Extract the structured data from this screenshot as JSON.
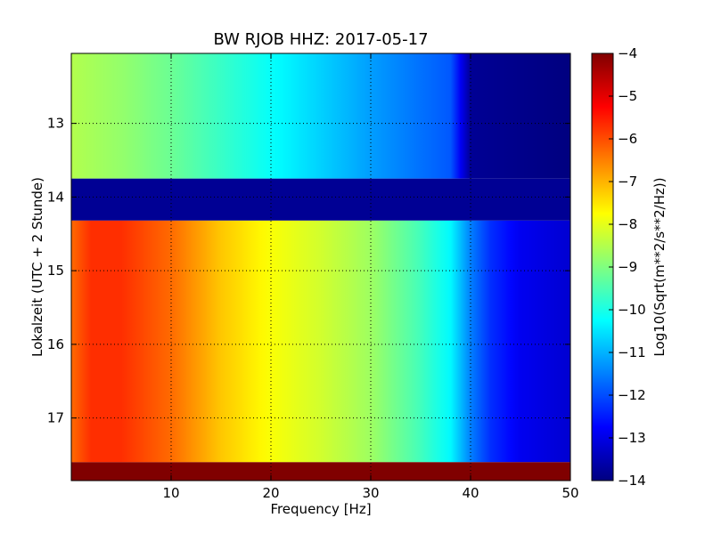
{
  "chart_data": {
    "type": "heatmap",
    "title": "BW RJOB HHZ: 2017-05-17",
    "xlabel": "Frequency [Hz]",
    "ylabel": "Lokalzeit (UTC + 2 Stunde)",
    "xlim": [
      0,
      50
    ],
    "ylim": [
      17.85,
      12.05
    ],
    "xticks": [
      10,
      20,
      30,
      40,
      50
    ],
    "xtick_labels": [
      "10",
      "20",
      "30",
      "40",
      "50"
    ],
    "yticks": [
      13,
      14,
      15,
      16,
      17
    ],
    "ytick_labels": [
      "13",
      "14",
      "15",
      "16",
      "17"
    ],
    "grid": true,
    "colormap": "jet",
    "colorbar": {
      "label": "Log10(Sqrt(m**2/s**2/Hz))",
      "range": [
        -14,
        -4
      ],
      "ticks": [
        -4,
        -5,
        -6,
        -7,
        -8,
        -9,
        -10,
        -11,
        -12,
        -13,
        -14
      ],
      "tick_labels": [
        "−4",
        "−5",
        "−6",
        "−7",
        "−8",
        "−9",
        "−10",
        "−11",
        "−12",
        "−13",
        "−14"
      ]
    },
    "time_blocks": [
      {
        "t_start": 12.05,
        "t_end": 13.75,
        "kind": "quiet",
        "profile_f": [
          0,
          5,
          10,
          20,
          30,
          38,
          40,
          50
        ],
        "profile_v": [
          -8.5,
          -8.8,
          -9.2,
          -10.2,
          -11.2,
          -11.9,
          -13.8,
          -14
        ]
      },
      {
        "t_start": 13.75,
        "t_end": 14.32,
        "kind": "gap",
        "value": -13.8
      },
      {
        "t_start": 14.32,
        "t_end": 17.6,
        "kind": "active",
        "profile_f": [
          0,
          2,
          5,
          10,
          15,
          20,
          25,
          30,
          35,
          38,
          40,
          42,
          45,
          50
        ],
        "profile_v": [
          -6.3,
          -5.7,
          -5.7,
          -6.3,
          -7.2,
          -7.8,
          -8.2,
          -8.7,
          -9.6,
          -10.3,
          -11.5,
          -12.3,
          -12.9,
          -13.2
        ]
      },
      {
        "t_start": 17.6,
        "t_end": 17.85,
        "kind": "saturated",
        "value": -4
      }
    ]
  }
}
